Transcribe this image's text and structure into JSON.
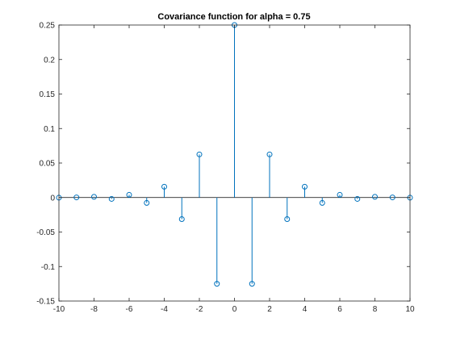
{
  "colors": {
    "series": "#0072bd",
    "axes": "#262626",
    "baseline": "#000000",
    "background": "#ffffff"
  },
  "chart_data": {
    "type": "stem",
    "title": "Covariance function for alpha = 0.75",
    "xlabel": "",
    "ylabel": "",
    "xlim": [
      -10,
      10
    ],
    "ylim": [
      -0.15,
      0.25
    ],
    "xticks": [
      -10,
      -8,
      -6,
      -4,
      -2,
      0,
      2,
      4,
      6,
      8,
      10
    ],
    "yticks": [
      -0.15,
      -0.1,
      -0.05,
      0,
      0.05,
      0.1,
      0.15,
      0.2,
      0.25
    ],
    "xtick_labels": [
      "-10",
      "-8",
      "-6",
      "-4",
      "-2",
      "0",
      "2",
      "4",
      "6",
      "8",
      "10"
    ],
    "ytick_labels": [
      "-0.15",
      "-0.1",
      "-0.05",
      "0",
      "0.05",
      "0.1",
      "0.15",
      "0.2",
      "0.25"
    ],
    "grid": false,
    "box": true,
    "baseline": true,
    "marker": "open-circle",
    "x": [
      -10,
      -9,
      -8,
      -7,
      -6,
      -5,
      -4,
      -3,
      -2,
      -1,
      0,
      1,
      2,
      3,
      4,
      5,
      6,
      7,
      8,
      9,
      10
    ],
    "y": [
      -0.0002,
      0.0002,
      0.001,
      -0.002,
      0.0039,
      -0.0078,
      0.0156,
      -0.0313,
      0.0625,
      -0.125,
      0.25,
      -0.125,
      0.0625,
      -0.0313,
      0.0156,
      -0.0078,
      0.0039,
      -0.002,
      0.001,
      0.0002,
      -0.0002
    ]
  }
}
